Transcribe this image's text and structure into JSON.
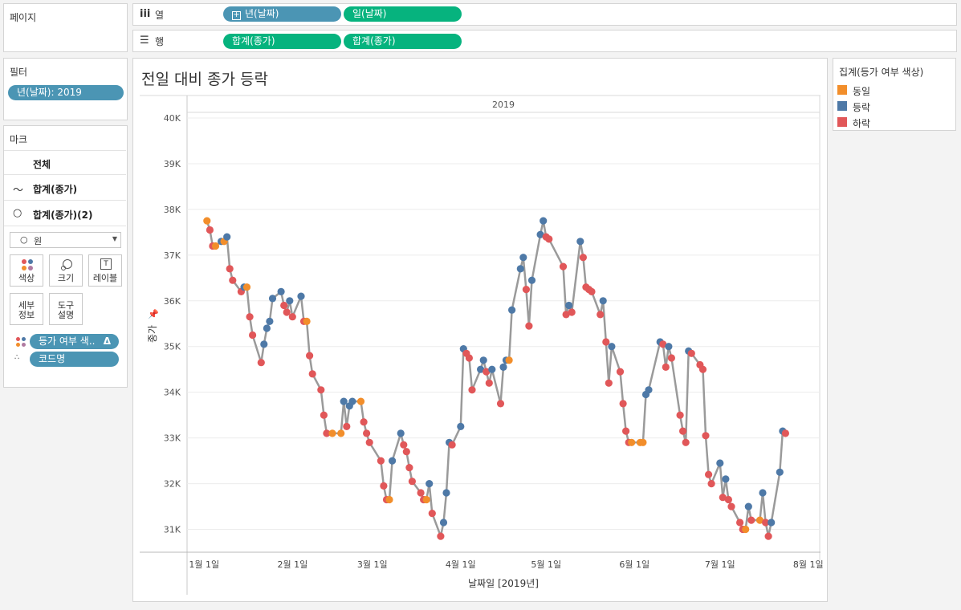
{
  "pages_panel": {
    "title": "페이지"
  },
  "filters_panel": {
    "title": "필터",
    "filter_pill": "년(날짜): 2019"
  },
  "marks_panel": {
    "title": "마크",
    "rows": [
      {
        "label": "전체"
      },
      {
        "label": "합계(종가)"
      },
      {
        "label": "합계(종가)(2)"
      }
    ],
    "mark_type": "원",
    "buttons": {
      "color": "색상",
      "size": "크기",
      "label": "레이블",
      "detail_line1": "세부",
      "detail_line2": "정보",
      "tooltip_line1": "도구",
      "tooltip_line2": "설명"
    },
    "field_pills": [
      {
        "label": "등가 여부 색.."
      },
      {
        "label": "코드명"
      }
    ]
  },
  "shelves": {
    "columns": {
      "label": "열",
      "pills": [
        "년(날짜)",
        "일(날짜)"
      ]
    },
    "rows": {
      "label": "행",
      "pills": [
        "합계(종가)",
        "합계(종가)"
      ]
    }
  },
  "colors": {
    "same": "#f28e2b",
    "up": "#4e79a7",
    "down": "#e15759",
    "line": "#9a9a9a",
    "pill_blue": "#4b95b4",
    "pill_green": "#06b37e"
  },
  "legend": {
    "title": "집계(등가 여부 색상)",
    "items": [
      {
        "label": "동일",
        "color": "#f28e2b"
      },
      {
        "label": "등락",
        "color": "#4e79a7"
      },
      {
        "label": "하락",
        "color": "#e15759"
      }
    ]
  },
  "chart_data": {
    "type": "line",
    "title": "전일 대비 종가 등락",
    "panel_header": "2019",
    "xlabel": "날짜일 [2019년]",
    "ylabel": "종가",
    "xlim": [
      "2018-12-26",
      "2019-08-05"
    ],
    "ylim": [
      30500,
      40000
    ],
    "yticks": [
      31000,
      32000,
      33000,
      34000,
      35000,
      36000,
      37000,
      38000,
      39000,
      40000
    ],
    "ytick_labels": [
      "31K",
      "32K",
      "33K",
      "34K",
      "35K",
      "36K",
      "37K",
      "38K",
      "39K",
      "40K"
    ],
    "xticks": [
      "2019-01-01",
      "2019-02-01",
      "2019-03-01",
      "2019-04-01",
      "2019-05-01",
      "2019-06-01",
      "2019-07-01",
      "2019-08-01"
    ],
    "xtick_labels": [
      "1월 1일",
      "2월 1일",
      "3월 1일",
      "4월 1일",
      "5월 1일",
      "6월 1일",
      "7월 1일",
      "8월 1일"
    ],
    "grid": "horizontal",
    "legend_position": "right",
    "series": [
      {
        "name": "합계(종가)",
        "points": [
          [
            "2019-01-02",
            37750,
            "same"
          ],
          [
            "2019-01-03",
            37550,
            "down"
          ],
          [
            "2019-01-04",
            37200,
            "down"
          ],
          [
            "2019-01-05",
            37200,
            "same"
          ],
          [
            "2019-01-07",
            37300,
            "up"
          ],
          [
            "2019-01-08",
            37300,
            "same"
          ],
          [
            "2019-01-09",
            37400,
            "up"
          ],
          [
            "2019-01-10",
            36700,
            "down"
          ],
          [
            "2019-01-11",
            36450,
            "down"
          ],
          [
            "2019-01-14",
            36200,
            "down"
          ],
          [
            "2019-01-15",
            36300,
            "up"
          ],
          [
            "2019-01-16",
            36300,
            "same"
          ],
          [
            "2019-01-17",
            35650,
            "down"
          ],
          [
            "2019-01-18",
            35250,
            "down"
          ],
          [
            "2019-01-21",
            34650,
            "down"
          ],
          [
            "2019-01-22",
            35050,
            "up"
          ],
          [
            "2019-01-23",
            35400,
            "up"
          ],
          [
            "2019-01-24",
            35550,
            "up"
          ],
          [
            "2019-01-25",
            36050,
            "up"
          ],
          [
            "2019-01-28",
            36200,
            "up"
          ],
          [
            "2019-01-29",
            35900,
            "down"
          ],
          [
            "2019-01-30",
            35750,
            "down"
          ],
          [
            "2019-01-31",
            36000,
            "up"
          ],
          [
            "2019-02-01",
            35650,
            "down"
          ],
          [
            "2019-02-04",
            36100,
            "up"
          ],
          [
            "2019-02-05",
            35550,
            "down"
          ],
          [
            "2019-02-06",
            35550,
            "same"
          ],
          [
            "2019-02-07",
            34800,
            "down"
          ],
          [
            "2019-02-08",
            34400,
            "down"
          ],
          [
            "2019-02-11",
            34050,
            "down"
          ],
          [
            "2019-02-12",
            33500,
            "down"
          ],
          [
            "2019-02-13",
            33100,
            "down"
          ],
          [
            "2019-02-15",
            33100,
            "same"
          ],
          [
            "2019-02-18",
            33100,
            "same"
          ],
          [
            "2019-02-19",
            33800,
            "up"
          ],
          [
            "2019-02-20",
            33250,
            "down"
          ],
          [
            "2019-02-21",
            33700,
            "up"
          ],
          [
            "2019-02-22",
            33800,
            "up"
          ],
          [
            "2019-02-25",
            33800,
            "same"
          ],
          [
            "2019-02-26",
            33350,
            "down"
          ],
          [
            "2019-02-27",
            33100,
            "down"
          ],
          [
            "2019-02-28",
            32900,
            "down"
          ],
          [
            "2019-03-04",
            32500,
            "down"
          ],
          [
            "2019-03-05",
            31950,
            "down"
          ],
          [
            "2019-03-06",
            31650,
            "down"
          ],
          [
            "2019-03-07",
            31650,
            "same"
          ],
          [
            "2019-03-08",
            32500,
            "up"
          ],
          [
            "2019-03-11",
            33100,
            "up"
          ],
          [
            "2019-03-12",
            32850,
            "down"
          ],
          [
            "2019-03-13",
            32700,
            "down"
          ],
          [
            "2019-03-14",
            32350,
            "down"
          ],
          [
            "2019-03-15",
            32050,
            "down"
          ],
          [
            "2019-03-18",
            31800,
            "down"
          ],
          [
            "2019-03-19",
            31650,
            "down"
          ],
          [
            "2019-03-20",
            31650,
            "same"
          ],
          [
            "2019-03-21",
            32000,
            "up"
          ],
          [
            "2019-03-22",
            31350,
            "down"
          ],
          [
            "2019-03-25",
            30850,
            "down"
          ],
          [
            "2019-03-26",
            31150,
            "up"
          ],
          [
            "2019-03-27",
            31800,
            "up"
          ],
          [
            "2019-03-28",
            32900,
            "up"
          ],
          [
            "2019-03-29",
            32850,
            "down"
          ],
          [
            "2019-04-01",
            33250,
            "up"
          ],
          [
            "2019-04-02",
            34950,
            "up"
          ],
          [
            "2019-04-03",
            34850,
            "down"
          ],
          [
            "2019-04-04",
            34750,
            "down"
          ],
          [
            "2019-04-05",
            34050,
            "down"
          ],
          [
            "2019-04-08",
            34500,
            "up"
          ],
          [
            "2019-04-09",
            34700,
            "up"
          ],
          [
            "2019-04-10",
            34450,
            "down"
          ],
          [
            "2019-04-11",
            34200,
            "down"
          ],
          [
            "2019-04-12",
            34500,
            "up"
          ],
          [
            "2019-04-15",
            33750,
            "down"
          ],
          [
            "2019-04-16",
            34550,
            "up"
          ],
          [
            "2019-04-17",
            34700,
            "up"
          ],
          [
            "2019-04-18",
            34700,
            "same"
          ],
          [
            "2019-04-19",
            35800,
            "up"
          ],
          [
            "2019-04-22",
            36700,
            "up"
          ],
          [
            "2019-04-23",
            36950,
            "up"
          ],
          [
            "2019-04-24",
            36250,
            "down"
          ],
          [
            "2019-04-25",
            35450,
            "down"
          ],
          [
            "2019-04-26",
            36450,
            "up"
          ],
          [
            "2019-04-29",
            37450,
            "up"
          ],
          [
            "2019-04-30",
            37750,
            "up"
          ],
          [
            "2019-05-01",
            37400,
            "down"
          ],
          [
            "2019-05-02",
            37350,
            "down"
          ],
          [
            "2019-05-07",
            36750,
            "down"
          ],
          [
            "2019-05-08",
            35700,
            "down"
          ],
          [
            "2019-05-09",
            35900,
            "up"
          ],
          [
            "2019-05-10",
            35750,
            "down"
          ],
          [
            "2019-05-13",
            37300,
            "up"
          ],
          [
            "2019-05-14",
            36950,
            "down"
          ],
          [
            "2019-05-15",
            36300,
            "down"
          ],
          [
            "2019-05-16",
            36250,
            "down"
          ],
          [
            "2019-05-17",
            36200,
            "down"
          ],
          [
            "2019-05-20",
            35700,
            "down"
          ],
          [
            "2019-05-21",
            36000,
            "up"
          ],
          [
            "2019-05-22",
            35100,
            "down"
          ],
          [
            "2019-05-23",
            34200,
            "down"
          ],
          [
            "2019-05-24",
            35000,
            "up"
          ],
          [
            "2019-05-27",
            34450,
            "down"
          ],
          [
            "2019-05-28",
            33750,
            "down"
          ],
          [
            "2019-05-29",
            33150,
            "down"
          ],
          [
            "2019-05-30",
            32900,
            "down"
          ],
          [
            "2019-05-31",
            32900,
            "same"
          ],
          [
            "2019-06-03",
            32900,
            "same"
          ],
          [
            "2019-06-04",
            32900,
            "same"
          ],
          [
            "2019-06-05",
            33950,
            "up"
          ],
          [
            "2019-06-06",
            34050,
            "up"
          ],
          [
            "2019-06-10",
            35100,
            "up"
          ],
          [
            "2019-06-11",
            35050,
            "down"
          ],
          [
            "2019-06-12",
            34550,
            "down"
          ],
          [
            "2019-06-13",
            35000,
            "up"
          ],
          [
            "2019-06-14",
            34750,
            "down"
          ],
          [
            "2019-06-17",
            33500,
            "down"
          ],
          [
            "2019-06-18",
            33150,
            "down"
          ],
          [
            "2019-06-19",
            32900,
            "down"
          ],
          [
            "2019-06-20",
            34900,
            "up"
          ],
          [
            "2019-06-21",
            34850,
            "down"
          ],
          [
            "2019-06-24",
            34600,
            "down"
          ],
          [
            "2019-06-25",
            34500,
            "down"
          ],
          [
            "2019-06-26",
            33050,
            "down"
          ],
          [
            "2019-06-27",
            32200,
            "down"
          ],
          [
            "2019-06-28",
            32000,
            "down"
          ],
          [
            "2019-07-01",
            32450,
            "up"
          ],
          [
            "2019-07-02",
            31700,
            "down"
          ],
          [
            "2019-07-03",
            32100,
            "up"
          ],
          [
            "2019-07-04",
            31650,
            "down"
          ],
          [
            "2019-07-05",
            31500,
            "down"
          ],
          [
            "2019-07-08",
            31150,
            "down"
          ],
          [
            "2019-07-09",
            31000,
            "down"
          ],
          [
            "2019-07-10",
            31000,
            "same"
          ],
          [
            "2019-07-11",
            31500,
            "up"
          ],
          [
            "2019-07-12",
            31200,
            "down"
          ],
          [
            "2019-07-15",
            31200,
            "same"
          ],
          [
            "2019-07-16",
            31800,
            "up"
          ],
          [
            "2019-07-17",
            31150,
            "down"
          ],
          [
            "2019-07-18",
            30850,
            "down"
          ],
          [
            "2019-07-19",
            31150,
            "up"
          ],
          [
            "2019-07-22",
            32250,
            "up"
          ],
          [
            "2019-07-23",
            33150,
            "up"
          ],
          [
            "2019-07-24",
            33100,
            "down"
          ]
        ]
      }
    ]
  }
}
